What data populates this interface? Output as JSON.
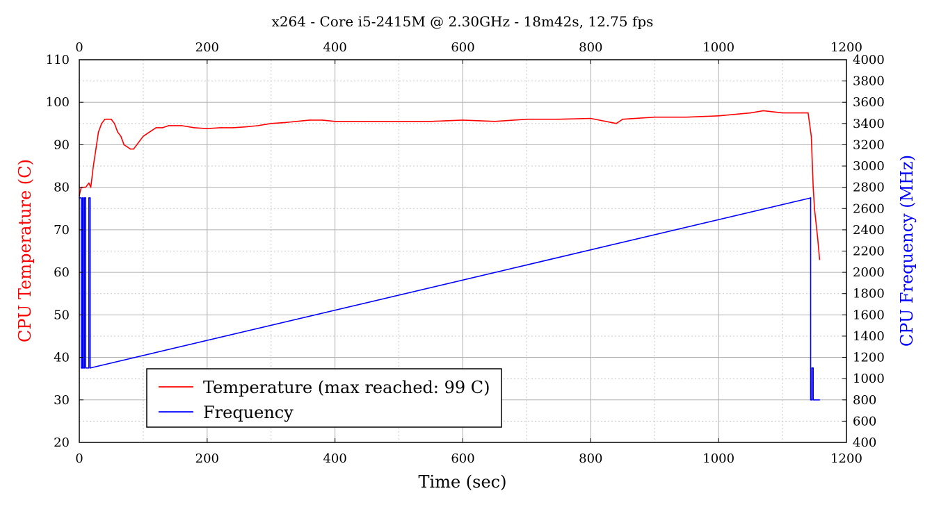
{
  "chart_data": {
    "type": "line",
    "title": "x264 - Core i5-2415M @ 2.30GHz - 18m42s, 12.75 fps",
    "xlabel": "Time (sec)",
    "ylabel_left": "CPU Temperature (C)",
    "ylabel_right": "CPU Frequency (MHz)",
    "xlim": [
      0,
      1200
    ],
    "ylim_left": [
      20,
      110
    ],
    "ylim_right": [
      400,
      4000
    ],
    "x_ticks": [
      "0",
      "200",
      "400",
      "600",
      "800",
      "1000",
      "1200"
    ],
    "top_x_ticks": [
      "0",
      "200",
      "400",
      "600",
      "800",
      "1000",
      "1200"
    ],
    "y_left_ticks": [
      "20",
      "30",
      "40",
      "50",
      "60",
      "70",
      "80",
      "90",
      "100",
      "110"
    ],
    "y_right_ticks": [
      "400",
      "600",
      "800",
      "1000",
      "1200",
      "1400",
      "1600",
      "1800",
      "2000",
      "2200",
      "2400",
      "2600",
      "2800",
      "3000",
      "3200",
      "3400",
      "3600",
      "3800",
      "4000"
    ],
    "grid": true,
    "legend_position": "bottom-left",
    "series": [
      {
        "name": "Temperature (max reached: 99 C)",
        "axis": "left",
        "color": "#ff0000",
        "x": [
          0,
          3,
          6,
          10,
          15,
          18,
          22,
          26,
          30,
          35,
          40,
          45,
          50,
          55,
          60,
          65,
          70,
          75,
          80,
          85,
          90,
          95,
          100,
          110,
          120,
          130,
          140,
          160,
          180,
          200,
          220,
          240,
          260,
          280,
          300,
          320,
          340,
          360,
          380,
          400,
          450,
          500,
          550,
          600,
          650,
          700,
          750,
          800,
          840,
          850,
          900,
          950,
          1000,
          1050,
          1070,
          1100,
          1130,
          1140,
          1145,
          1148,
          1150,
          1155,
          1158
        ],
        "y": [
          78,
          80,
          80,
          80,
          81,
          80,
          85,
          89,
          93,
          95,
          96,
          96,
          96,
          95,
          93,
          92,
          90,
          89.5,
          89,
          89,
          90,
          91,
          92,
          93,
          94,
          94,
          94.5,
          94.5,
          94,
          93.8,
          94,
          94,
          94.2,
          94.5,
          95,
          95.2,
          95.5,
          95.8,
          95.8,
          95.5,
          95.5,
          95.5,
          95.5,
          95.8,
          95.5,
          96,
          96,
          96.2,
          95,
          96,
          96.5,
          96.5,
          96.8,
          97.5,
          98,
          97.5,
          97.5,
          97.5,
          92,
          80,
          75,
          68,
          63
        ]
      },
      {
        "name": "Frequency",
        "axis": "right",
        "color": "#0000ff",
        "x": [
          0,
          3,
          3,
          5,
          5,
          6,
          6,
          8,
          8,
          10,
          10,
          15,
          15,
          17,
          17,
          1144,
          1144,
          1146,
          1146,
          1148,
          1148,
          1150,
          1150,
          1158
        ],
        "y": [
          2700,
          2700,
          1100,
          1100,
          2700,
          2700,
          1100,
          1100,
          2700,
          2700,
          1100,
          1100,
          2700,
          2700,
          1100,
          2700,
          800,
          800,
          1100,
          1100,
          800,
          800,
          800,
          800
        ]
      }
    ]
  },
  "colors": {
    "temperature": "#ff0000",
    "frequency": "#0000ff",
    "major_grid": "#b0b0b0",
    "minor_grid": "#c8c8c8"
  }
}
